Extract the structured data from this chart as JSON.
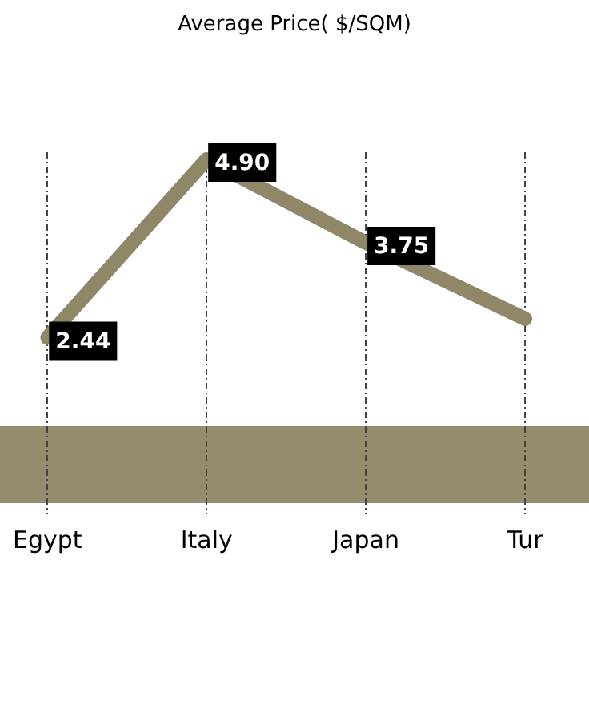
{
  "chart_data": {
    "type": "line",
    "title": "Average Price( $/SQM)",
    "categories": [
      "Egypt",
      "Italy",
      "Japan",
      "Tur"
    ],
    "series": [
      {
        "color": "#8f8768",
        "values": [
          2.44,
          4.9,
          3.75,
          2.7
        ],
        "value_labels": [
          "2.44",
          "4.90",
          "3.75",
          null
        ]
      }
    ],
    "tick_labels": "x",
    "grid": "x",
    "legend": false,
    "marker": "none",
    "line_style": "solid"
  }
}
